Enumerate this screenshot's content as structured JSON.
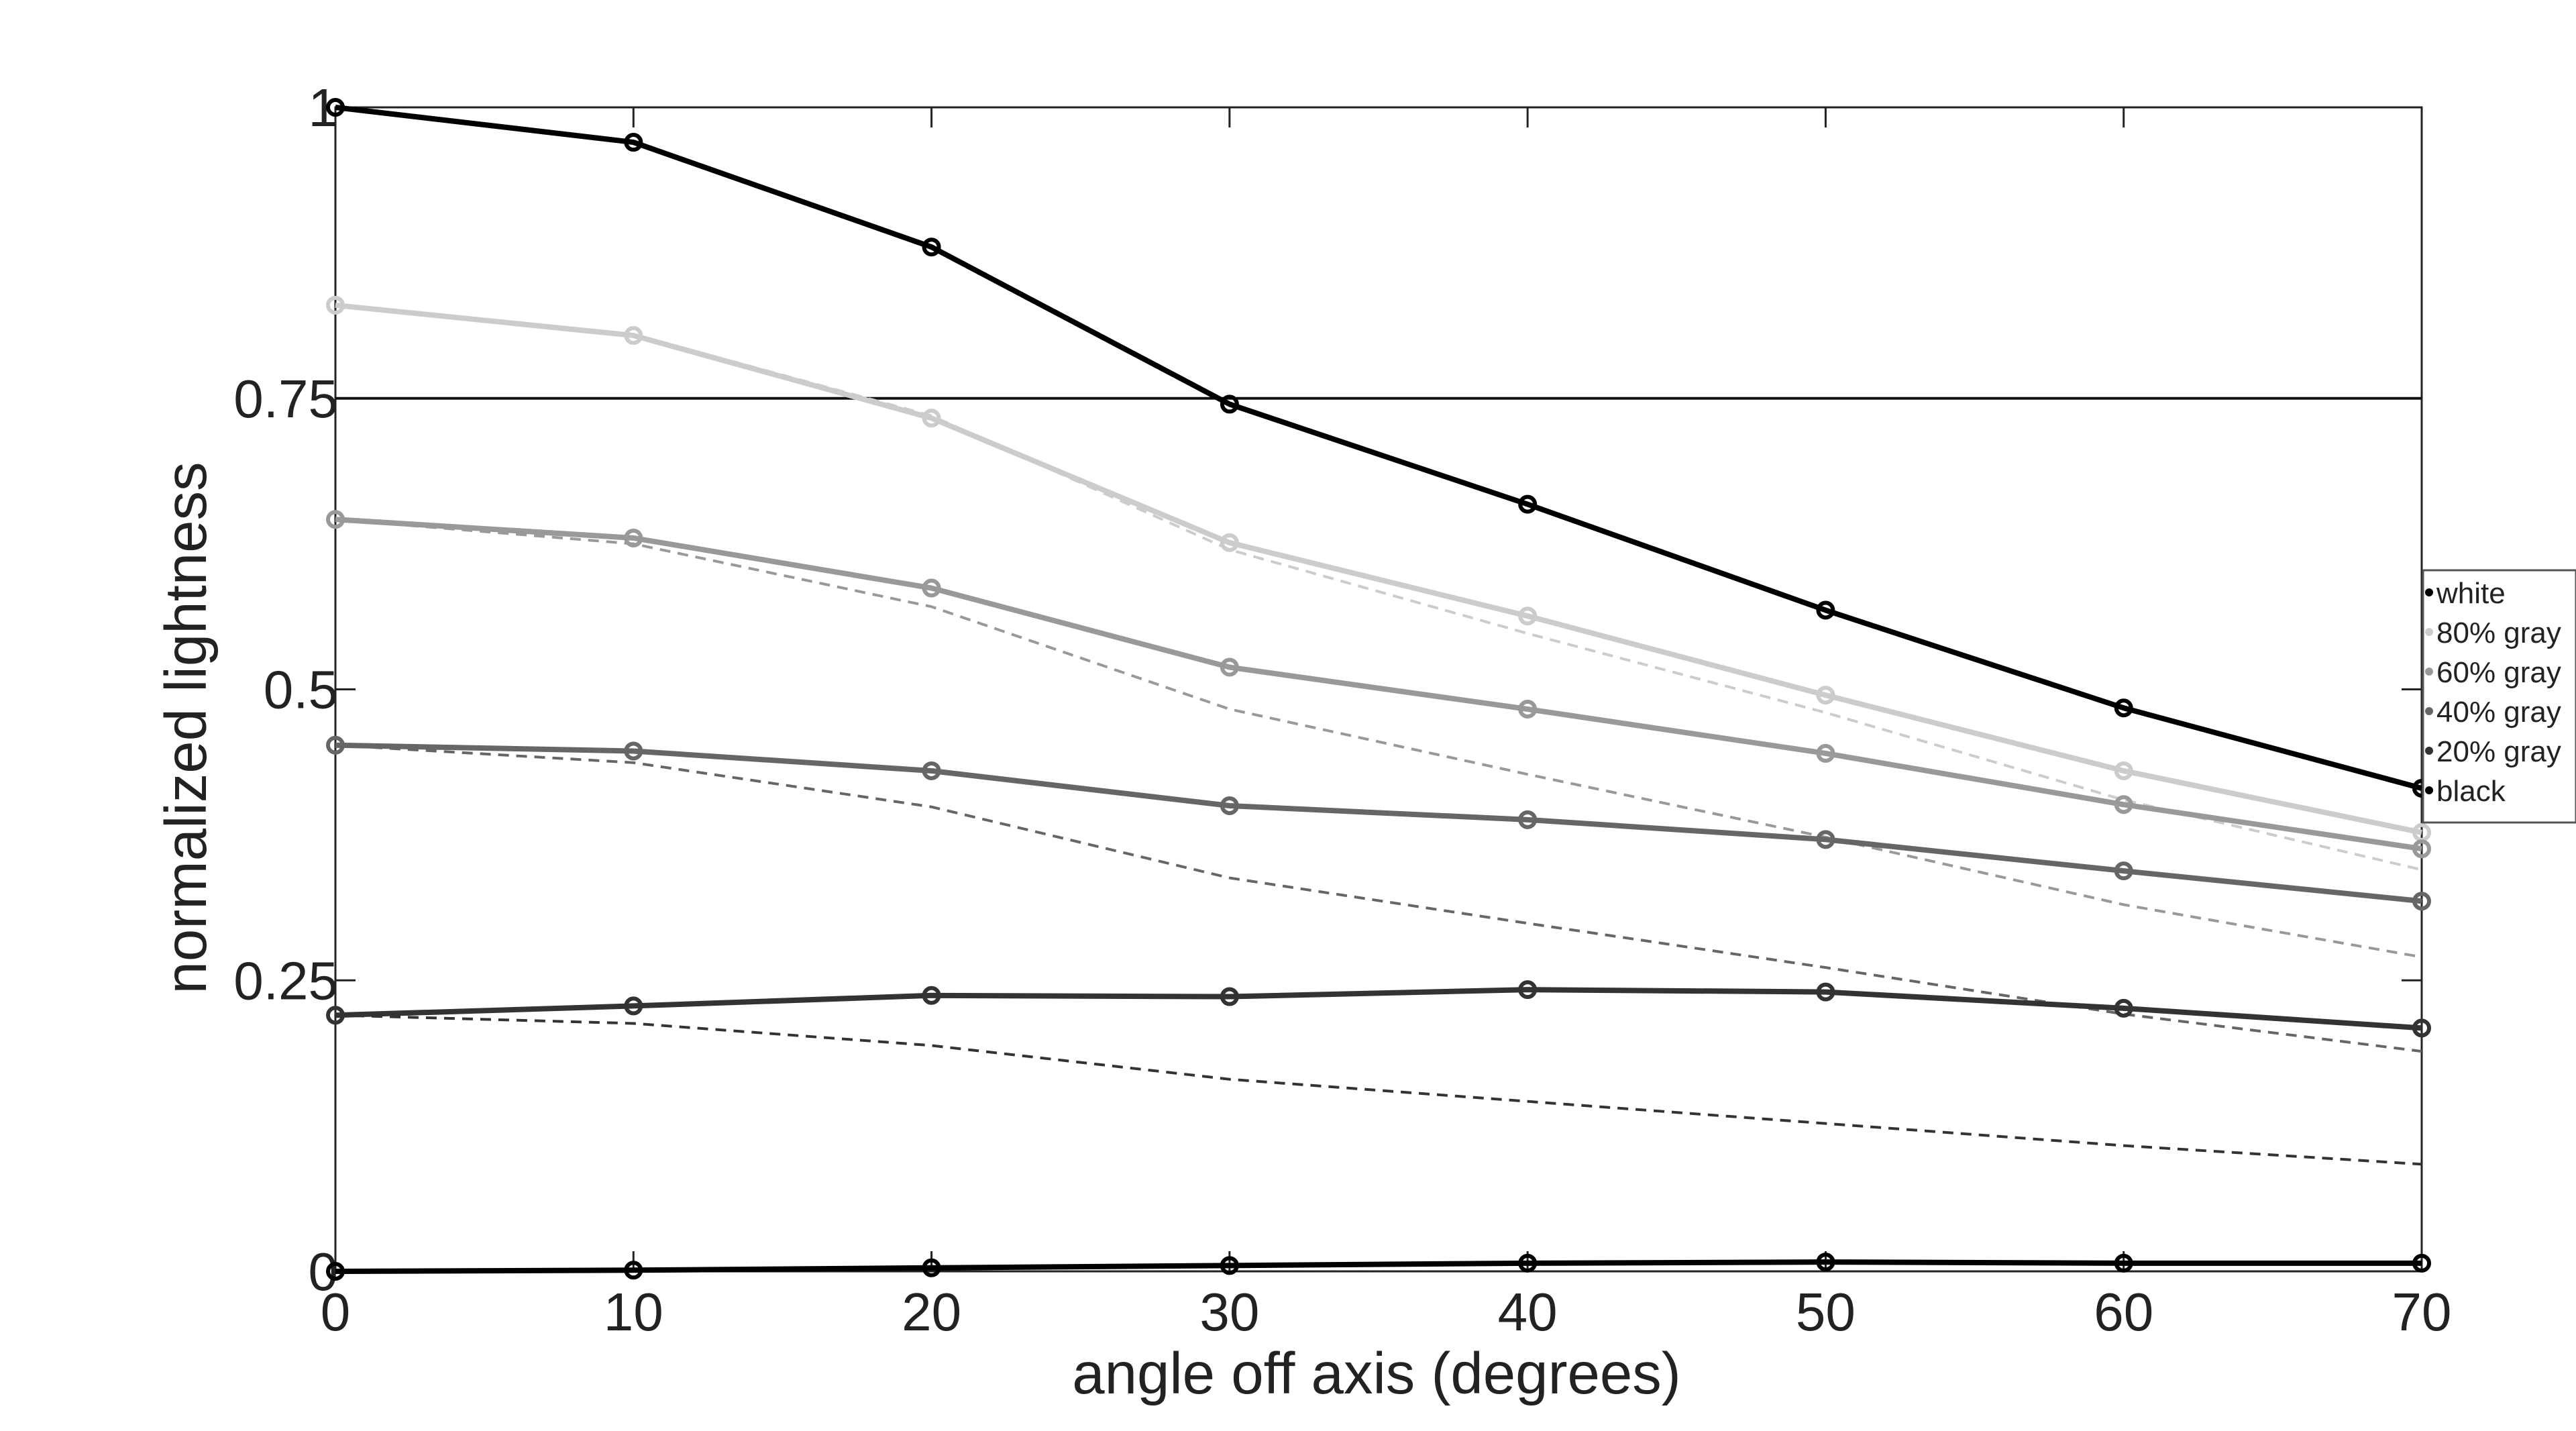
{
  "chart_data": {
    "type": "line",
    "title": "",
    "xlabel": "angle off axis (degrees)",
    "ylabel": "normalized lightness",
    "xlim": [
      0,
      70
    ],
    "ylim": [
      0,
      1
    ],
    "x_ticks": [
      0,
      10,
      20,
      30,
      40,
      50,
      60,
      70
    ],
    "x_tick_labels": [
      "0",
      "10",
      "20",
      "30",
      "40",
      "50",
      "60",
      "70"
    ],
    "y_ticks": [
      0,
      0.25,
      0.5,
      0.75,
      1
    ],
    "y_tick_labels": [
      "0",
      "0.25",
      "0.5",
      "0.75",
      "1"
    ],
    "grid": false,
    "legend_position": "right",
    "reference_line": {
      "y": 0.75
    },
    "x": [
      0,
      10,
      20,
      30,
      40,
      50,
      60,
      70
    ],
    "series": [
      {
        "name": "white",
        "color": "#000000",
        "values": [
          1.0,
          0.97,
          0.88,
          0.745,
          0.659,
          0.568,
          0.484,
          0.415
        ]
      },
      {
        "name": "80% gray",
        "color": "#cccccc",
        "values": [
          0.83,
          0.804,
          0.733,
          0.626,
          0.563,
          0.495,
          0.43,
          0.377
        ]
      },
      {
        "name": "60% gray",
        "color": "#999999",
        "values": [
          0.646,
          0.63,
          0.587,
          0.519,
          0.483,
          0.445,
          0.401,
          0.363
        ]
      },
      {
        "name": "40% gray",
        "color": "#666666",
        "values": [
          0.452,
          0.447,
          0.43,
          0.4,
          0.388,
          0.371,
          0.344,
          0.318
        ]
      },
      {
        "name": "20% gray",
        "color": "#333333",
        "values": [
          0.22,
          0.228,
          0.237,
          0.236,
          0.242,
          0.24,
          0.226,
          0.209
        ]
      },
      {
        "name": "black",
        "color": "#000000",
        "values": [
          0.0,
          0.001,
          0.003,
          0.005,
          0.007,
          0.008,
          0.007,
          0.007
        ]
      }
    ],
    "reference_series": [
      {
        "color": "#cccccc",
        "values": [
          0.83,
          0.805,
          0.735,
          0.62,
          0.548,
          0.48,
          0.405,
          0.345
        ]
      },
      {
        "color": "#999999",
        "values": [
          0.646,
          0.625,
          0.571,
          0.483,
          0.427,
          0.373,
          0.315,
          0.27
        ]
      },
      {
        "color": "#666666",
        "values": [
          0.452,
          0.437,
          0.399,
          0.338,
          0.299,
          0.261,
          0.221,
          0.189
        ]
      },
      {
        "color": "#333333",
        "values": [
          0.22,
          0.213,
          0.194,
          0.165,
          0.146,
          0.127,
          0.108,
          0.092
        ]
      }
    ]
  }
}
